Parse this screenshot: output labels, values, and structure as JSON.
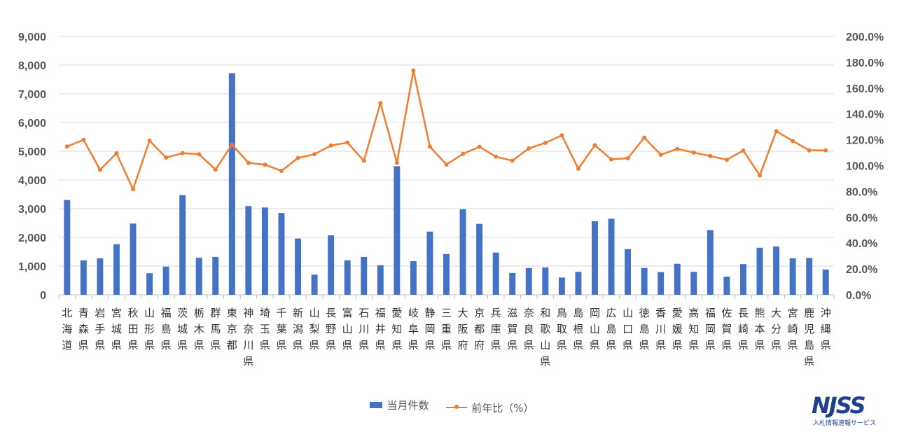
{
  "chart_data": {
    "type": "bar",
    "categories": [
      "北海道",
      "青森県",
      "岩手県",
      "宮城県",
      "秋田県",
      "山形県",
      "福島県",
      "茨城県",
      "栃木県",
      "群馬県",
      "東京都",
      "神奈川県",
      "埼玉県",
      "千葉県",
      "新潟県",
      "山梨県",
      "長野県",
      "富山県",
      "石川県",
      "福井県",
      "愛知県",
      "岐阜県",
      "静岡県",
      "三重県",
      "大阪府",
      "京都府",
      "兵庫県",
      "滋賀県",
      "奈良県",
      "和歌山県",
      "鳥取県",
      "島根県",
      "岡山県",
      "広島県",
      "山口県",
      "徳島県",
      "香川県",
      "愛媛県",
      "高知県",
      "福岡県",
      "佐賀県",
      "長崎県",
      "熊本県",
      "大分県",
      "宮崎県",
      "鹿児島県",
      "沖縄県"
    ],
    "series": [
      {
        "name": "当月件数",
        "type": "bar",
        "axis": "left",
        "color": "#4472C4",
        "values": [
          3300,
          1200,
          1270,
          1760,
          2480,
          750,
          980,
          3470,
          1290,
          1320,
          7720,
          3090,
          3040,
          2850,
          1960,
          700,
          2070,
          1200,
          1320,
          1030,
          4480,
          1170,
          2200,
          1420,
          2980,
          2470,
          1470,
          760,
          930,
          950,
          600,
          800,
          2560,
          2650,
          1590,
          930,
          790,
          1080,
          800,
          2250,
          630,
          1070,
          1640,
          1680,
          1270,
          1280,
          880
        ]
      },
      {
        "name": "前年比（%）",
        "type": "line",
        "axis": "right",
        "color": "#ED7D31",
        "values": [
          114.8,
          119.9,
          96.8,
          109.5,
          81.7,
          119.3,
          106.2,
          109.6,
          108.8,
          96.9,
          116.2,
          102.1,
          100.7,
          95.9,
          105.9,
          108.8,
          115.5,
          117.8,
          103.7,
          148.4,
          102.1,
          173.5,
          114.7,
          100.8,
          109.0,
          114.6,
          106.9,
          103.8,
          113.3,
          117.6,
          123.4,
          97.6,
          115.7,
          104.8,
          105.7,
          121.6,
          108.4,
          112.9,
          110.0,
          107.4,
          104.5,
          111.6,
          92.4,
          126.6,
          119.1,
          111.8,
          111.8
        ]
      }
    ],
    "y_left": {
      "min": 0,
      "max": 9000,
      "ticks": [
        "0",
        "1,000",
        "2,000",
        "3,000",
        "4,000",
        "5,000",
        "6,000",
        "7,000",
        "8,000",
        "9,000"
      ]
    },
    "y_right": {
      "min": 0,
      "max": 200,
      "ticks": [
        "0.0%",
        "20.0%",
        "40.0%",
        "60.0%",
        "80.0%",
        "100.0%",
        "120.0%",
        "140.0%",
        "160.0%",
        "180.0%",
        "200.0%"
      ]
    },
    "grid": true,
    "legend_position": "bottom"
  },
  "legend": {
    "bar_label": "当月件数",
    "line_label": "前年比（%）"
  },
  "logo": {
    "main": "NJSS",
    "sub": "入札情報速報サービス"
  }
}
